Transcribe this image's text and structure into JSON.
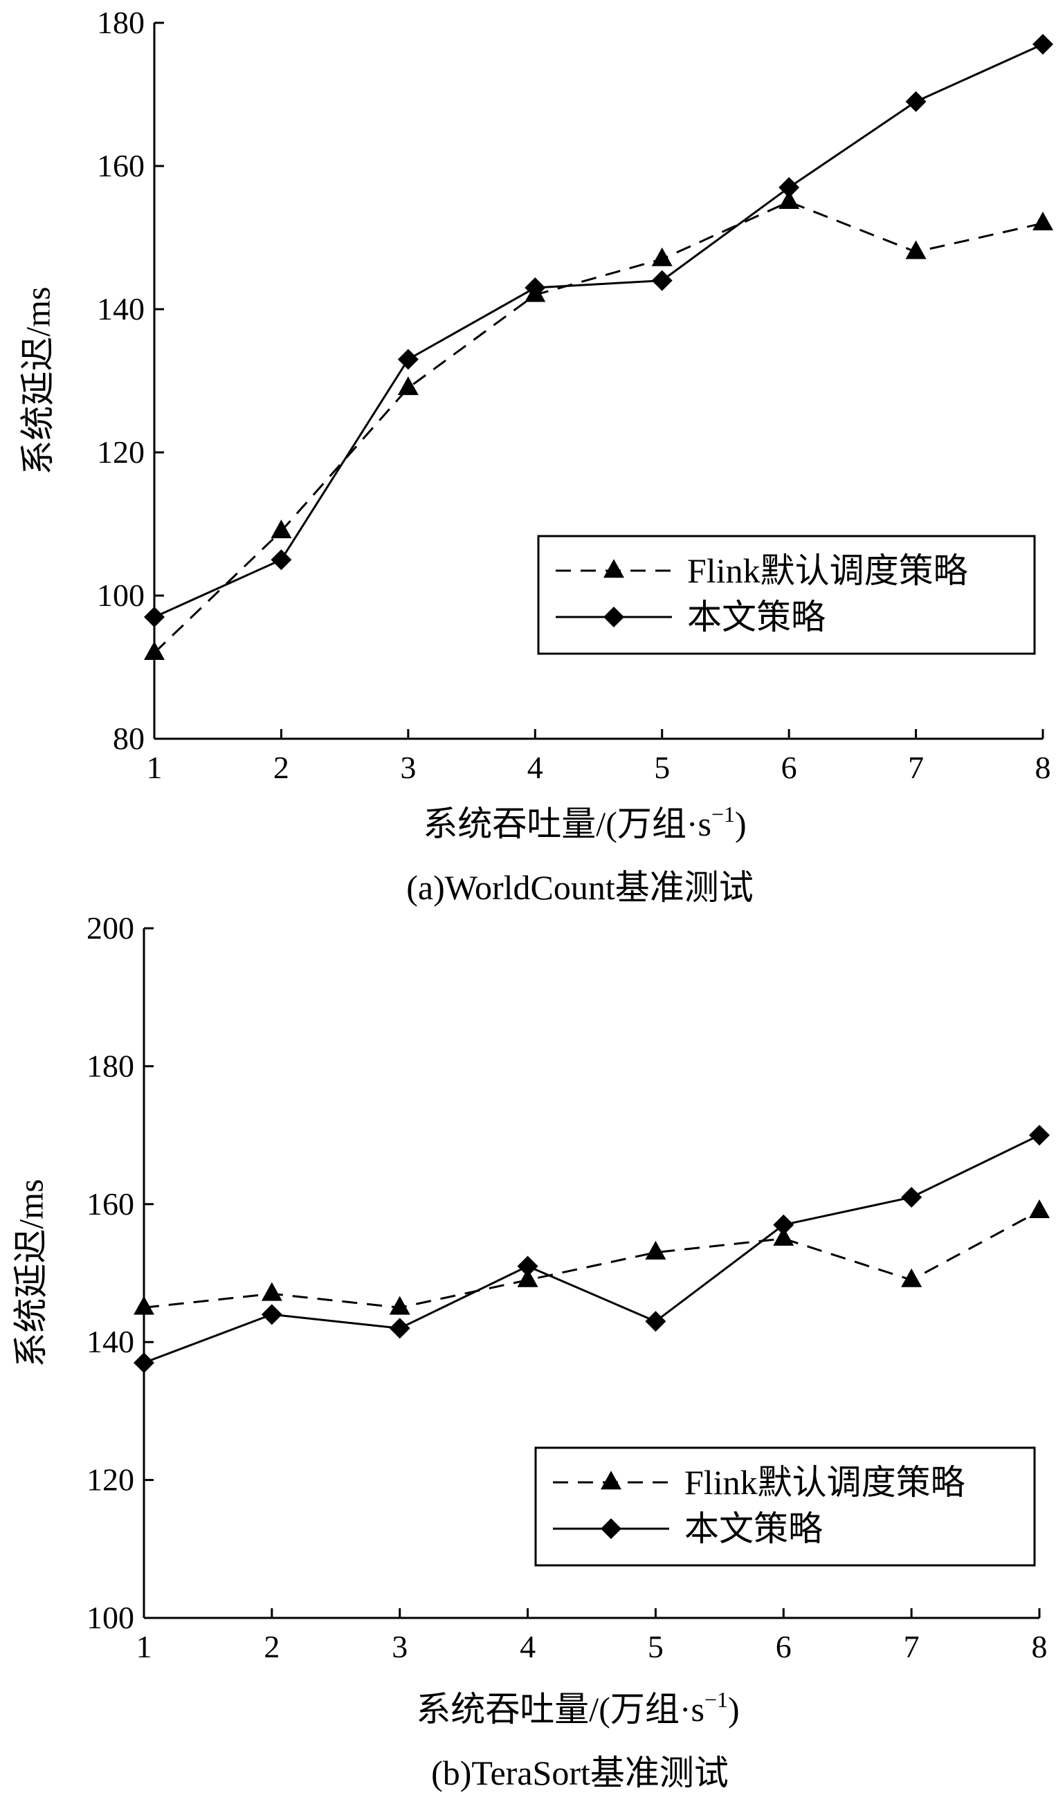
{
  "chart_data": [
    {
      "type": "line",
      "caption": "(a)WorldCount基准测试",
      "xlabel": "系统吞吐量/(万组·s",
      "xlabel_sup": "−1",
      "xlabel_close": ")",
      "ylabel": "系统延迟/ms",
      "xlim": [
        1,
        8
      ],
      "ylim": [
        80,
        180
      ],
      "x_ticks": [
        1,
        2,
        3,
        4,
        5,
        6,
        7,
        8
      ],
      "y_ticks": [
        80,
        100,
        120,
        140,
        160,
        180
      ],
      "x": [
        1,
        2,
        3,
        4,
        5,
        6,
        7,
        8
      ],
      "legend_position": "lower-right",
      "series": [
        {
          "name": "Flink默认调度策略",
          "marker": "triangle",
          "line": "dashed",
          "values": [
            92,
            109,
            129,
            142,
            147,
            155,
            148,
            152
          ]
        },
        {
          "name": "本文策略",
          "marker": "diamond",
          "line": "solid",
          "values": [
            97,
            105,
            133,
            143,
            144,
            157,
            169,
            177
          ]
        }
      ]
    },
    {
      "type": "line",
      "caption": "(b)TeraSort基准测试",
      "xlabel": "系统吞吐量/(万组·s",
      "xlabel_sup": "−1",
      "xlabel_close": ")",
      "ylabel": "系统延迟/ms",
      "xlim": [
        1,
        8
      ],
      "ylim": [
        100,
        200
      ],
      "x_ticks": [
        1,
        2,
        3,
        4,
        5,
        6,
        7,
        8
      ],
      "y_ticks": [
        100,
        120,
        140,
        160,
        180,
        200
      ],
      "x": [
        1,
        2,
        3,
        4,
        5,
        6,
        7,
        8
      ],
      "legend_position": "lower-right",
      "series": [
        {
          "name": "Flink默认调度策略",
          "marker": "triangle",
          "line": "dashed",
          "values": [
            145,
            147,
            145,
            149,
            153,
            155,
            149,
            159
          ]
        },
        {
          "name": "本文策略",
          "marker": "diamond",
          "line": "solid",
          "values": [
            137,
            144,
            142,
            151,
            143,
            157,
            161,
            170
          ]
        }
      ]
    }
  ]
}
